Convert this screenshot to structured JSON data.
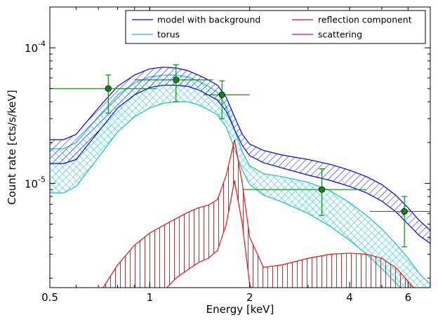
{
  "chart_data": {
    "type": "line",
    "xlabel": "Energy [keV]",
    "ylabel": "Count rate [cts/s/keV]",
    "xscale": "log",
    "yscale": "log",
    "xlim": [
      0.5,
      7.0
    ],
    "ylim": [
      1.7e-06,
      0.0002
    ],
    "x_ticks": [
      {
        "value": 0.5,
        "label": "0.5"
      },
      {
        "value": 1,
        "label": "1"
      },
      {
        "value": 2,
        "label": "2"
      },
      {
        "value": 4,
        "label": "4"
      },
      {
        "value": 6,
        "label": "6"
      }
    ],
    "y_ticks": [
      {
        "value": 1e-05,
        "base": "10",
        "exp": "-5"
      },
      {
        "value": 0.0001,
        "base": "10",
        "exp": "-4"
      }
    ],
    "legend": {
      "placement": "top-right",
      "columns": 2,
      "entries": [
        {
          "label": "model with background",
          "color": "#0000ee"
        },
        {
          "label": "torus",
          "color": "#17becf"
        },
        {
          "label": "reflection component",
          "color": "#ee1111"
        },
        {
          "label": "scattering",
          "color": "#bf00bf"
        }
      ]
    },
    "x": [
      0.5,
      0.55,
      0.6,
      0.7,
      0.8,
      0.9,
      1.0,
      1.1,
      1.2,
      1.3,
      1.4,
      1.5,
      1.6,
      1.7,
      1.8,
      1.9,
      2.0,
      2.2,
      2.5,
      3.0,
      3.5,
      4.0,
      4.5,
      5.0,
      5.5,
      6.0,
      6.5,
      7.0
    ],
    "series": [
      {
        "name": "model with background",
        "color": "#0000ee",
        "hatch": "diagonal",
        "upper": [
          2.1e-05,
          2.1e-05,
          2.3e-05,
          3.6e-05,
          5.2e-05,
          6.3e-05,
          7e-05,
          7.2e-05,
          7.1e-05,
          6.8e-05,
          6.3e-05,
          5.8e-05,
          5.3e-05,
          4.3e-05,
          3.1e-05,
          2.3e-05,
          1.95e-05,
          1.75e-05,
          1.62e-05,
          1.5e-05,
          1.38e-05,
          1.25e-05,
          1.12e-05,
          9.8e-06,
          8.2e-06,
          6.6e-06,
          5.3e-06,
          4.5e-06
        ],
        "lower": [
          1.4e-05,
          1.4e-05,
          1.5e-05,
          2.4e-05,
          3.6e-05,
          4.5e-05,
          5.1e-05,
          5.3e-05,
          5.3e-05,
          5.2e-05,
          4.9e-05,
          4.5e-05,
          4.1e-05,
          3.4e-05,
          2.5e-05,
          1.9e-05,
          1.6e-05,
          1.42e-05,
          1.3e-05,
          1.15e-05,
          1.05e-05,
          9.5e-06,
          8.5e-06,
          7.4e-06,
          6.2e-06,
          5e-06,
          4.1e-06,
          3.6e-06
        ]
      },
      {
        "name": "torus",
        "color": "#17becf",
        "hatch": "cross",
        "upper": [
          1.8e-05,
          1.8e-05,
          2e-05,
          3.1e-05,
          4.5e-05,
          5.5e-05,
          6.1e-05,
          6.3e-05,
          6.3e-05,
          6.1e-05,
          5.7e-05,
          5.2e-05,
          4.7e-05,
          3.7e-05,
          2.5e-05,
          1.7e-05,
          1.35e-05,
          1.18e-05,
          1.12e-05,
          1.02e-05,
          8.8e-06,
          7.2e-06,
          5.8e-06,
          4.6e-06,
          3.6e-06,
          2.8e-06,
          2.15e-06,
          1.8e-06
        ],
        "lower": [
          8.5e-06,
          8.5e-06,
          9.5e-06,
          1.55e-05,
          2.4e-05,
          3.1e-05,
          3.6e-05,
          3.9e-05,
          4e-05,
          4e-05,
          3.8e-05,
          3.5e-05,
          3.2e-05,
          2.6e-05,
          1.8e-05,
          1.25e-05,
          9.8e-06,
          8.2e-06,
          7.3e-06,
          6e-06,
          4.8e-06,
          3.8e-06,
          3e-06,
          2.35e-06,
          1.85e-06,
          1.5e-06,
          1.3e-06,
          1.2e-06
        ]
      },
      {
        "name": "reflection component",
        "color": "#ee1111",
        "hatch": "vertical",
        "upper": [
          1e-06,
          1e-06,
          1.05e-06,
          1.5e-06,
          2.5e-06,
          3.5e-06,
          4.3e-06,
          4.9e-06,
          5.5e-06,
          6.1e-06,
          6.6e-06,
          6.9e-06,
          7.6e-06,
          1.15e-05,
          2.1e-05,
          1e-05,
          4e-06,
          2.4e-06,
          2.5e-06,
          2.8e-06,
          3e-06,
          3.05e-06,
          3e-06,
          2.8e-06,
          2.4e-06,
          1.9e-06,
          1.5e-06,
          1.3e-06
        ],
        "lower": [
          1e-06,
          1e-06,
          1e-06,
          1e-06,
          1e-06,
          1e-06,
          1.15e-06,
          1.6e-06,
          2e-06,
          2.3e-06,
          2.6e-06,
          2.8e-06,
          3.2e-06,
          5e-06,
          1.05e-05,
          5e-06,
          1.8e-06,
          1.1e-06,
          1.15e-06,
          1.3e-06,
          1.4e-06,
          1.45e-06,
          1.4e-06,
          1.3e-06,
          1.1e-06,
          1e-06,
          1e-06,
          1e-06
        ]
      }
    ],
    "data_points": {
      "color": "#118811",
      "points": [
        {
          "x": 0.75,
          "y": 5e-05,
          "xerr": [
            0.5,
            1.05
          ],
          "yerr": [
            3.3e-05,
            6.3e-05
          ]
        },
        {
          "x": 1.2,
          "y": 5.8e-05,
          "xerr": [
            0.9,
            1.55
          ],
          "yerr": [
            4e-05,
            7.5e-05
          ]
        },
        {
          "x": 1.65,
          "y": 4.5e-05,
          "xerr": [
            1.45,
            2.0
          ],
          "yerr": [
            3e-05,
            5.7e-05
          ]
        },
        {
          "x": 3.3,
          "y": 9e-06,
          "xerr": [
            1.9,
            4.5
          ],
          "yerr": [
            5.8e-06,
            1.28e-05
          ]
        },
        {
          "x": 5.85,
          "y": 6.2e-06,
          "xerr": [
            4.6,
            7.0
          ],
          "yerr": [
            3.4e-06,
            8e-06
          ]
        }
      ]
    }
  }
}
